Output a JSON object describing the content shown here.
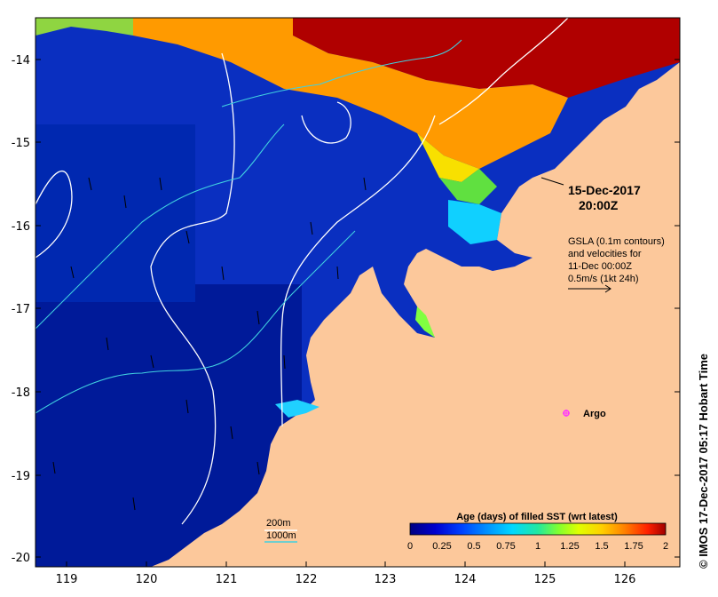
{
  "map": {
    "timestamp_line1": "15-Dec-2017",
    "timestamp_line2": "20:00Z",
    "gsla_line1": "GSLA (0.1m contours)",
    "gsla_line2": "and velocities for",
    "gsla_line3": "11-Dec 00:00Z",
    "gsla_line4": "0.5m/s (1kt 24h)",
    "argo_label": "Argo",
    "depth_200": "200m",
    "depth_1000": "1000m",
    "credit": "© IMOS 17-Dec-2017 05:17 Hobart Time"
  },
  "axes": {
    "lon_ticks": [
      "119",
      "120",
      "121",
      "122",
      "123",
      "124",
      "125",
      "126"
    ],
    "lat_ticks": [
      "-14",
      "-15",
      "-16",
      "-17",
      "-18",
      "-19",
      "-20"
    ]
  },
  "colorbar": {
    "title": "Age (days) of filled SST (wrt latest)",
    "ticks": [
      "0",
      "0.25",
      "0.5",
      "0.75",
      "1",
      "1.25",
      "1.5",
      "1.75",
      "2"
    ],
    "colors": [
      "#000080",
      "#0000c8",
      "#0040ff",
      "#0090ff",
      "#00d8ff",
      "#20f0a0",
      "#80ff30",
      "#e0ff00",
      "#ffd000",
      "#ff8000",
      "#ff2000",
      "#a00000"
    ]
  },
  "colors": {
    "land": "#fcc89b",
    "ocean_deep": "#001a99",
    "ocean_mid": "#0a3fd0",
    "contour": "#ffffff",
    "isobath_200": "#ffffff",
    "isobath_1000": "#40d0e0",
    "argo": "#ff33ff"
  }
}
